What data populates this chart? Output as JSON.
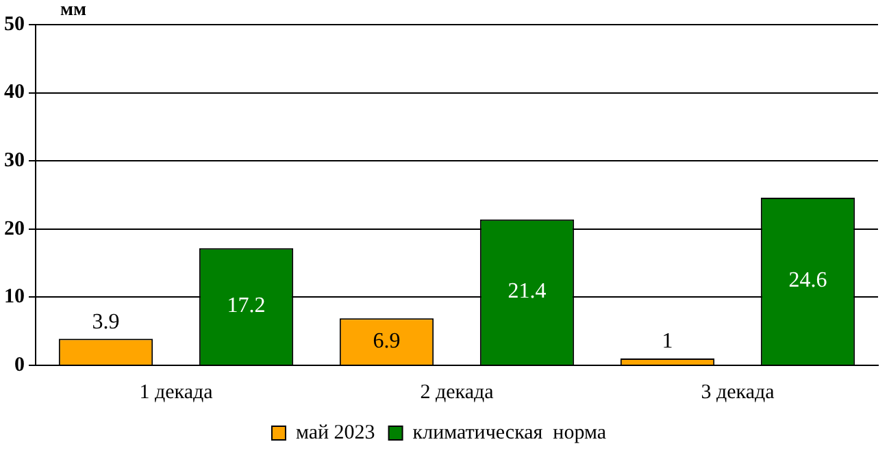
{
  "chart_data": {
    "type": "bar",
    "ylabel": "мм",
    "categories": [
      "1 декада",
      "2 декада",
      "3 декада"
    ],
    "series": [
      {
        "name": "май 2023",
        "color": "#ffa500",
        "values": [
          3.9,
          6.9,
          1
        ]
      },
      {
        "name": "климатическая  норма",
        "color": "#008000",
        "values": [
          17.2,
          21.4,
          24.6
        ]
      }
    ],
    "ylim": [
      0,
      50
    ],
    "yticks": [
      0,
      10,
      20,
      30,
      40,
      50
    ],
    "grid": "y",
    "legend": "bottom",
    "data_labels": true
  }
}
